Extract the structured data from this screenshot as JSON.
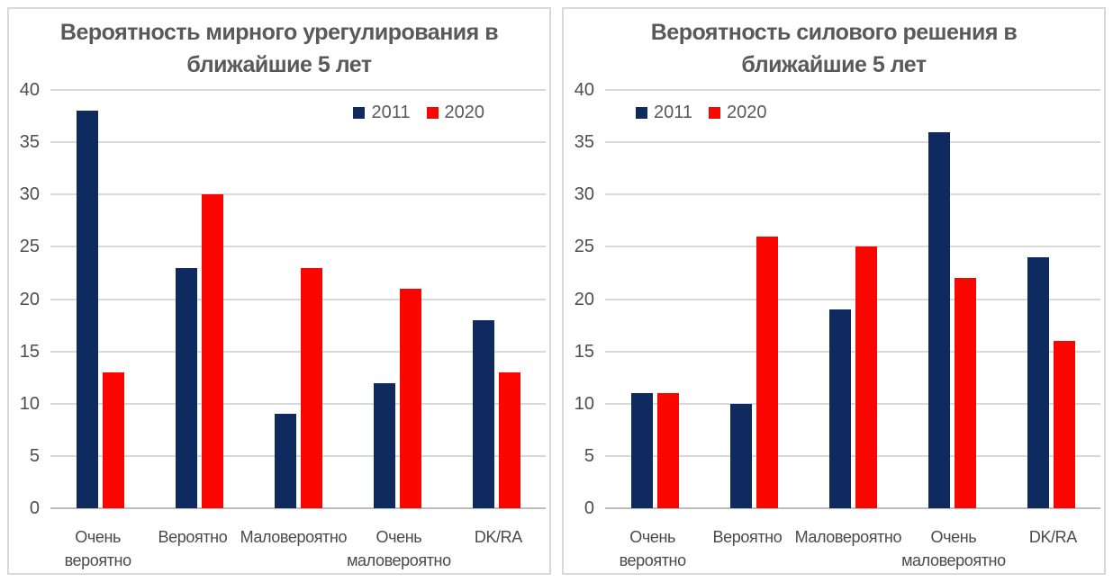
{
  "chart_data": [
    {
      "type": "bar",
      "title": "Вероятность мирного урегулирования в ближайшие 5 лет",
      "categories": [
        "Очень вероятно",
        "Вероятно",
        "Маловероятно",
        "Очень маловероятно",
        "DK/RA"
      ],
      "series": [
        {
          "name": "2011",
          "color": "#0e2a5f",
          "values": [
            38,
            23,
            9,
            12,
            18
          ]
        },
        {
          "name": "2020",
          "color": "#fa0500",
          "values": [
            13,
            30,
            23,
            21,
            13
          ]
        }
      ],
      "xlabel": "",
      "ylabel": "",
      "ylim": [
        0,
        40
      ],
      "ytick_step": 5,
      "grid": true,
      "legend_position": "right"
    },
    {
      "type": "bar",
      "title": "Вероятность силового решения в ближайшие 5 лет",
      "categories": [
        "Очень вероятно",
        "Вероятно",
        "Маловероятно",
        "Очень маловероятно",
        "DK/RA"
      ],
      "series": [
        {
          "name": "2011",
          "color": "#0e2a5f",
          "values": [
            11,
            10,
            19,
            36,
            24
          ]
        },
        {
          "name": "2020",
          "color": "#fa0500",
          "values": [
            11,
            26,
            25,
            22,
            16
          ]
        }
      ],
      "xlabel": "",
      "ylabel": "",
      "ylim": [
        0,
        40
      ],
      "ytick_step": 5,
      "grid": true,
      "legend_position": "left"
    }
  ],
  "colors": {
    "title_text": "#595959",
    "axis_text": "#4a4a4a",
    "gridline": "#d9d9d9",
    "panel_border": "#d9d9d9"
  }
}
